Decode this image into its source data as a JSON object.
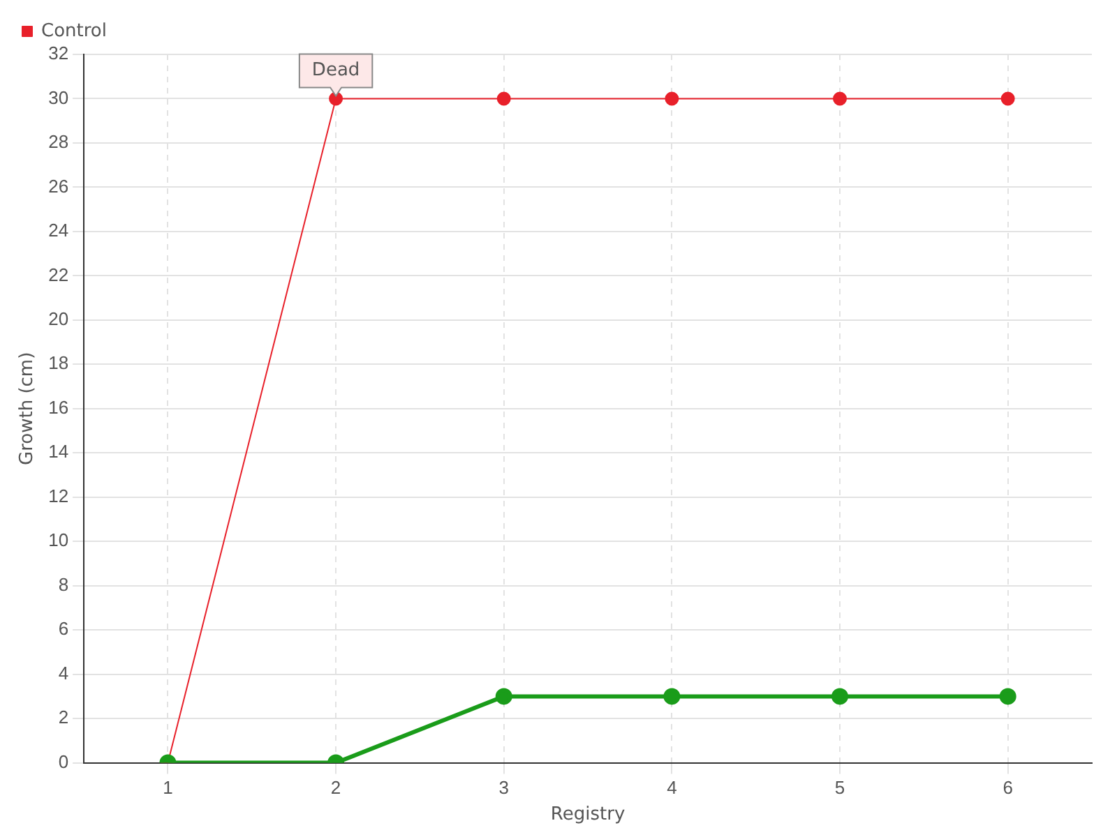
{
  "chart_data": {
    "type": "line",
    "xlabel": "Registry",
    "ylabel": "Growth (cm)",
    "categories": [
      "1",
      "2",
      "3",
      "4",
      "5",
      "6"
    ],
    "series": [
      {
        "color": "#1a9c1a",
        "values": [
          0,
          0,
          3,
          3,
          3,
          3
        ]
      },
      {
        "name": "Control",
        "color": "#e8202a",
        "values": [
          0,
          30,
          30,
          30,
          30,
          30
        ]
      }
    ],
    "ylim": [
      0,
      32
    ],
    "yticks": [
      0,
      2,
      4,
      6,
      8,
      10,
      12,
      14,
      16,
      18,
      20,
      22,
      24,
      26,
      28,
      30,
      32
    ],
    "grid": true,
    "legend": "top left",
    "marker": "circle",
    "line_style": "solid",
    "annotations": [
      {
        "text": "Dead",
        "x": "2",
        "y": 30
      }
    ]
  }
}
